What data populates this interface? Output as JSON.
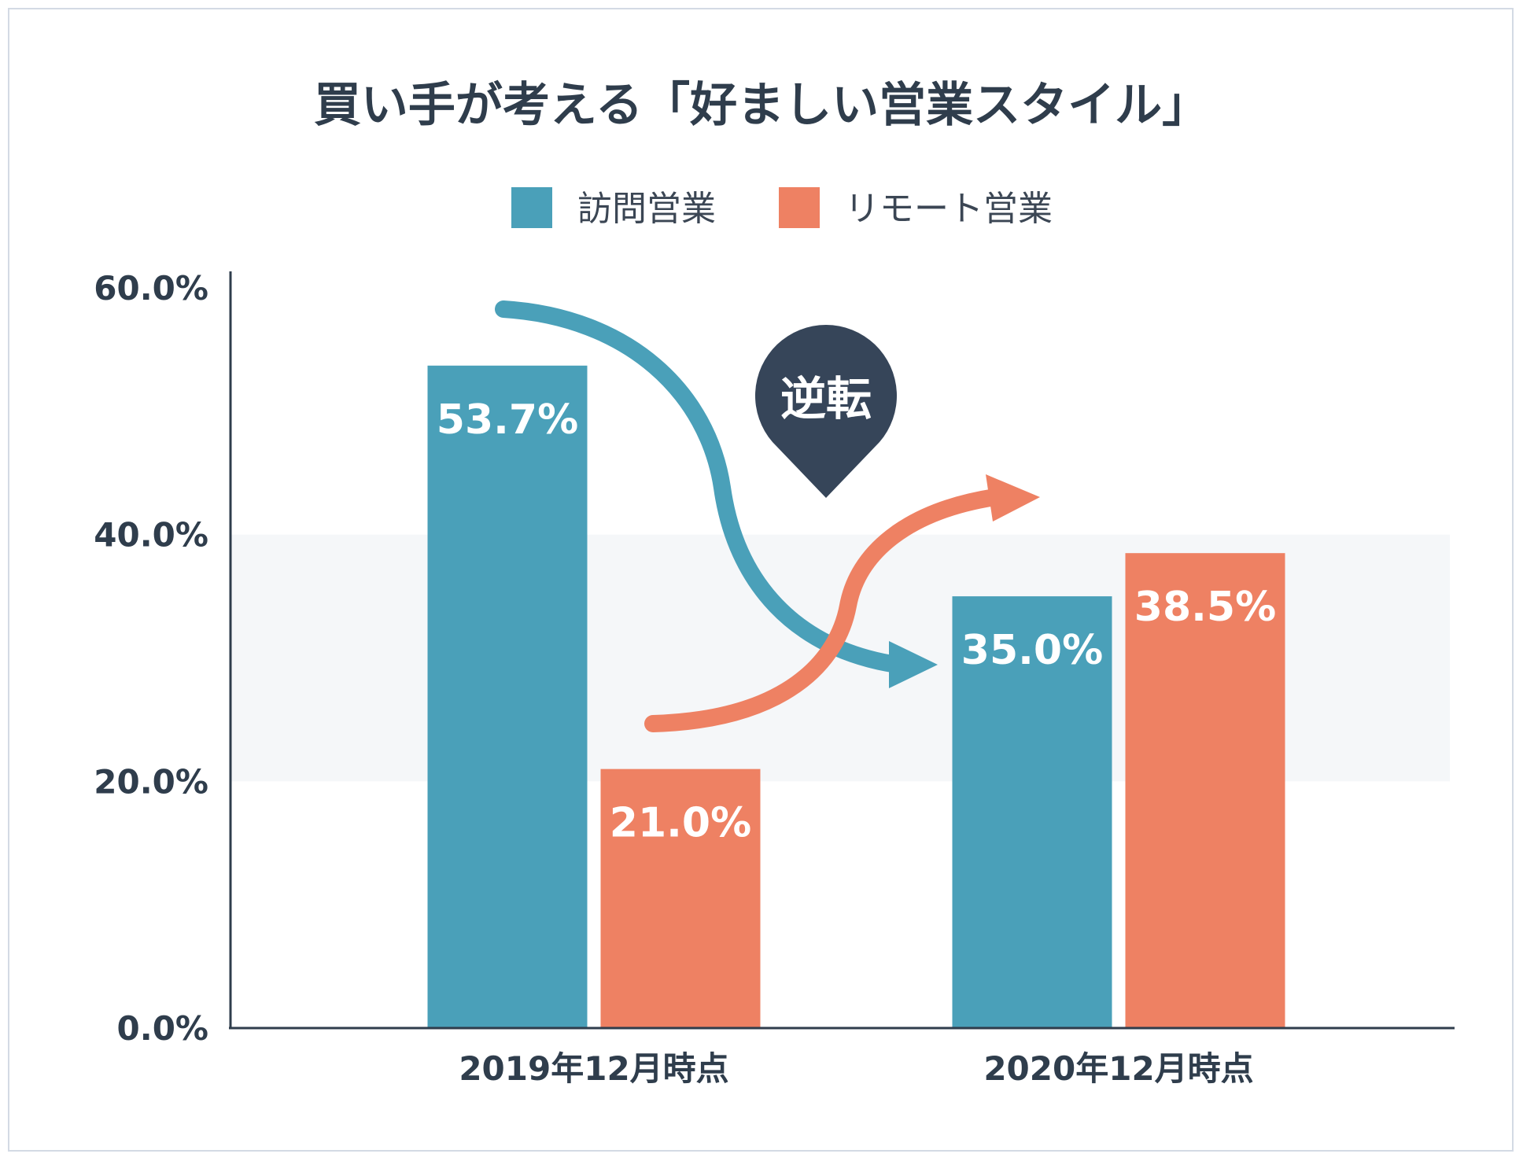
{
  "chart_data": {
    "type": "bar",
    "title": "買い手が考える「好ましい営業スタイル」",
    "categories": [
      "2019年12月時点",
      "2020年12月時点"
    ],
    "series": [
      {
        "name": "訪問営業",
        "values": [
          53.7,
          35.0
        ],
        "labels": [
          "53.7%",
          "35.0%"
        ],
        "color": "#4aa0b9"
      },
      {
        "name": "リモート営業",
        "values": [
          21.0,
          38.5
        ],
        "labels": [
          "21.0%",
          "38.5%"
        ],
        "color": "#ee8163"
      }
    ],
    "ylim": [
      0,
      60
    ],
    "yticks": [
      {
        "value": 0,
        "label": "0.0%"
      },
      {
        "value": 20,
        "label": "20.0%"
      },
      {
        "value": 40,
        "label": "40.0%"
      },
      {
        "value": 60,
        "label": "60.0%"
      }
    ],
    "highlight_band": [
      20,
      40
    ],
    "legend_position": "top-center",
    "grid": false,
    "annotation": {
      "text": "逆転",
      "color": "#364559"
    }
  }
}
